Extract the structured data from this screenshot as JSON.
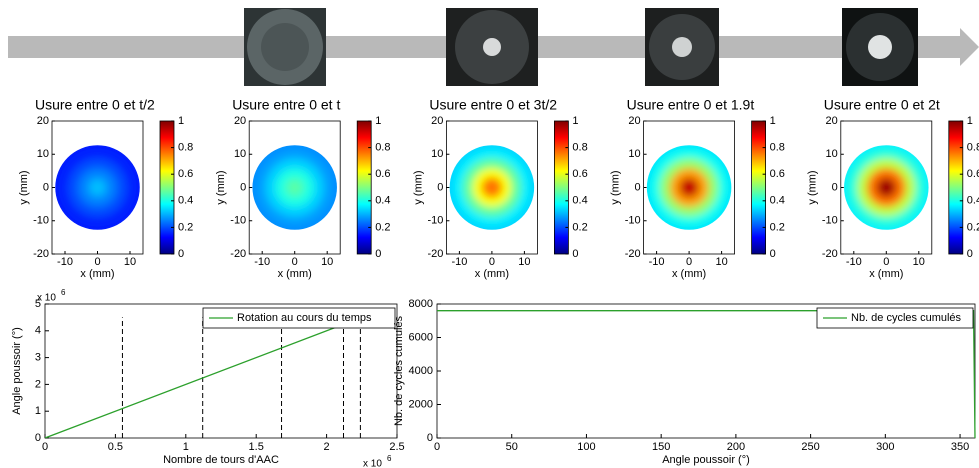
{
  "chart_data": [
    {
      "type": "wear-map",
      "title": "Usure entre 0 et t/2",
      "xlabel": "x (mm)",
      "ylabel": "y (mm)",
      "xlim": [
        -14,
        14
      ],
      "ylim": [
        -20,
        20
      ],
      "xticks": [
        -10,
        0,
        10
      ],
      "yticks": [
        -20,
        -10,
        0,
        10,
        20
      ],
      "clim": [
        0,
        1
      ],
      "cticks": [
        0,
        0.2,
        0.4,
        0.6,
        0.8,
        1
      ],
      "r": [
        0,
        3,
        6,
        9,
        12,
        13
      ],
      "values": [
        0.33,
        0.3,
        0.25,
        0.2,
        0.16,
        0.15
      ]
    },
    {
      "type": "wear-map",
      "title": "Usure entre 0 et t",
      "xlabel": "x (mm)",
      "ylabel": "y (mm)",
      "xlim": [
        -14,
        14
      ],
      "ylim": [
        -20,
        20
      ],
      "xticks": [
        -10,
        0,
        10
      ],
      "yticks": [
        -20,
        -10,
        0,
        10,
        20
      ],
      "clim": [
        0,
        1
      ],
      "cticks": [
        0,
        0.2,
        0.4,
        0.6,
        0.8,
        1
      ],
      "r": [
        0,
        3,
        6,
        9,
        12,
        13
      ],
      "values": [
        0.48,
        0.45,
        0.4,
        0.33,
        0.28,
        0.26
      ]
    },
    {
      "type": "wear-map",
      "title": "Usure entre 0 et 3t/2",
      "xlabel": "x (mm)",
      "ylabel": "y (mm)",
      "xlim": [
        -14,
        14
      ],
      "ylim": [
        -20,
        20
      ],
      "xticks": [
        -10,
        0,
        10
      ],
      "yticks": [
        -20,
        -10,
        0,
        10,
        20
      ],
      "clim": [
        0,
        1
      ],
      "cticks": [
        0,
        0.2,
        0.4,
        0.6,
        0.8,
        1
      ],
      "r": [
        0,
        3,
        6,
        9,
        12,
        13
      ],
      "values": [
        0.72,
        0.78,
        0.62,
        0.47,
        0.36,
        0.33
      ]
    },
    {
      "type": "wear-map",
      "title": "Usure entre 0 et 1.9t",
      "xlabel": "x (mm)",
      "ylabel": "y (mm)",
      "xlim": [
        -14,
        14
      ],
      "ylim": [
        -20,
        20
      ],
      "xticks": [
        -10,
        0,
        10
      ],
      "yticks": [
        -20,
        -10,
        0,
        10,
        20
      ],
      "clim": [
        0,
        1
      ],
      "cticks": [
        0,
        0.2,
        0.4,
        0.6,
        0.8,
        1
      ],
      "r": [
        0,
        3,
        6,
        9,
        12,
        13
      ],
      "values": [
        0.95,
        0.93,
        0.72,
        0.52,
        0.39,
        0.35
      ]
    },
    {
      "type": "wear-map",
      "title": "Usure entre 0 et 2t",
      "xlabel": "x (mm)",
      "ylabel": "y (mm)",
      "xlim": [
        -14,
        14
      ],
      "ylim": [
        -20,
        20
      ],
      "xticks": [
        -10,
        0,
        10
      ],
      "yticks": [
        -20,
        -10,
        0,
        10,
        20
      ],
      "clim": [
        0,
        1
      ],
      "cticks": [
        0,
        0.2,
        0.4,
        0.6,
        0.8,
        1
      ],
      "r": [
        0,
        3,
        6,
        9,
        12,
        13
      ],
      "values": [
        1,
        0.96,
        0.76,
        0.56,
        0.41,
        0.36
      ]
    },
    {
      "type": "line",
      "xlabel": "Nombre de tours d'AAC",
      "ylabel": "Angle poussoir (°)",
      "x_multiplier": {
        "base": "x 10",
        "exponent": "6"
      },
      "y_multiplier": {
        "base": "x 10",
        "exponent": "6"
      },
      "xlim": [
        0,
        2500000
      ],
      "ylim": [
        0,
        5000000
      ],
      "xticks": [
        0,
        {
          "value": 500000,
          "label": "0.5"
        },
        {
          "value": 1000000,
          "label": "1"
        },
        {
          "value": 1500000,
          "label": "1.5"
        },
        {
          "value": 2000000,
          "label": "2"
        },
        {
          "value": 2500000,
          "label": "2.5"
        }
      ],
      "yticks": [
        0,
        {
          "value": 1000000,
          "label": "1"
        },
        {
          "value": 2000000,
          "label": "2"
        },
        {
          "value": 3000000,
          "label": "3"
        },
        {
          "value": 4000000,
          "label": "4"
        },
        {
          "value": 5000000,
          "label": "5"
        }
      ],
      "vlines": [
        550000,
        1120000,
        1680000,
        2120000,
        2240000
      ],
      "vline_top": 4500000,
      "legend": "northeast",
      "series": [
        {
          "name": "Rotation au cours du temps",
          "color": "#2ca02c",
          "x": [
            0,
            2150000
          ],
          "values": [
            0,
            4300000
          ]
        }
      ]
    },
    {
      "type": "line",
      "xlabel": "Angle poussoir (°)",
      "ylabel": "Nb. de cycles cumulés",
      "xlim": [
        0,
        360
      ],
      "ylim": [
        0,
        8000
      ],
      "xticks": [
        0,
        50,
        100,
        150,
        200,
        250,
        300,
        350
      ],
      "yticks": [
        0,
        2000,
        4000,
        6000,
        8000
      ],
      "legend": "northeast",
      "series": [
        {
          "name": "Nb. de cycles cumulés",
          "color": "#2ca02c",
          "x": [
            0,
            359,
            360
          ],
          "values": [
            7600,
            7600,
            0
          ]
        }
      ]
    }
  ]
}
